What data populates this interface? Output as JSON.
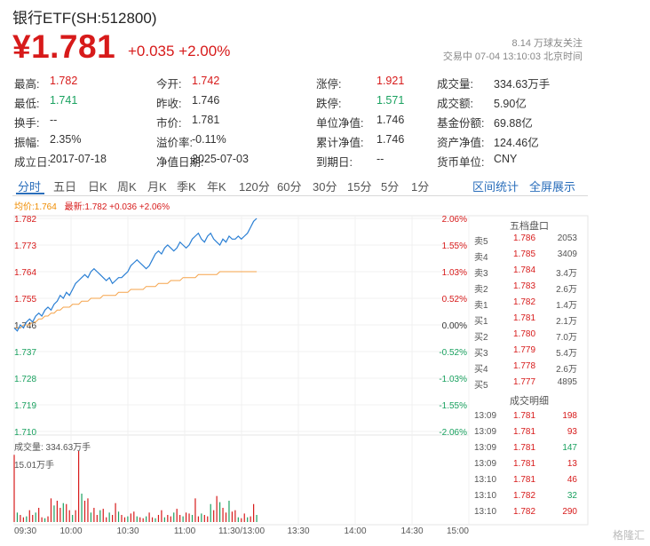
{
  "header": {
    "title": "银行ETF(SH:512800)",
    "price": "¥1.781",
    "change": "+0.035 +2.00%",
    "followers": "8.14 万球友关注",
    "status_time": "交易中 07-04 13:10:03 北京时间"
  },
  "stats": [
    {
      "label": "最高:",
      "value": "1.782",
      "color": "red"
    },
    {
      "label": "今开:",
      "value": "1.742",
      "color": "red"
    },
    {
      "label": "涨停:",
      "value": "1.921",
      "color": "red"
    },
    {
      "label": "成交量:",
      "value": "334.63万手",
      "color": ""
    },
    {
      "label": "最低:",
      "value": "1.741",
      "color": "green"
    },
    {
      "label": "昨收:",
      "value": "1.746",
      "color": ""
    },
    {
      "label": "跌停:",
      "value": "1.571",
      "color": "green"
    },
    {
      "label": "成交额:",
      "value": "5.90亿",
      "color": ""
    },
    {
      "label": "换手:",
      "value": "--",
      "color": ""
    },
    {
      "label": "市价:",
      "value": "1.781",
      "color": ""
    },
    {
      "label": "单位净值:",
      "value": "1.746",
      "color": ""
    },
    {
      "label": "基金份额:",
      "value": "69.88亿",
      "color": ""
    },
    {
      "label": "振幅:",
      "value": "2.35%",
      "color": ""
    },
    {
      "label": "溢价率:",
      "value": "-0.11%",
      "color": ""
    },
    {
      "label": "累计净值:",
      "value": "1.746",
      "color": ""
    },
    {
      "label": "资产净值:",
      "value": "124.46亿",
      "color": ""
    },
    {
      "label": "成立日:",
      "value": "2017-07-18",
      "color": ""
    },
    {
      "label": "净值日期:",
      "value": "2025-07-03",
      "color": ""
    },
    {
      "label": "到期日:",
      "value": "--",
      "color": ""
    },
    {
      "label": "货币单位:",
      "value": "CNY",
      "color": ""
    }
  ],
  "tabs": [
    "分时",
    "五日",
    "日K",
    "周K",
    "月K",
    "季K",
    "年K",
    "120分",
    "60分",
    "30分",
    "15分",
    "5分",
    "1分"
  ],
  "active_tab": "分时",
  "right_links": [
    "区间统计",
    "全屏展示"
  ],
  "legend": {
    "avg": "均价:1.764",
    "latest": "最新:1.782 +0.036 +2.06%"
  },
  "order_book": {
    "title": "五档盘口",
    "sell": [
      {
        "label": "卖5",
        "price": "1.786",
        "volume": "2053"
      },
      {
        "label": "卖4",
        "price": "1.785",
        "volume": "3409"
      },
      {
        "label": "卖3",
        "price": "1.784",
        "volume": "3.4万"
      },
      {
        "label": "卖2",
        "price": "1.783",
        "volume": "2.6万"
      },
      {
        "label": "卖1",
        "price": "1.782",
        "volume": "1.4万"
      }
    ],
    "buy": [
      {
        "label": "买1",
        "price": "1.781",
        "volume": "2.1万"
      },
      {
        "label": "买2",
        "price": "1.780",
        "volume": "7.0万"
      },
      {
        "label": "买3",
        "price": "1.779",
        "volume": "5.4万"
      },
      {
        "label": "买4",
        "price": "1.778",
        "volume": "2.6万"
      },
      {
        "label": "买5",
        "price": "1.777",
        "volume": "4895"
      }
    ]
  },
  "deals": {
    "title": "成交明细",
    "rows": [
      {
        "time": "13:09",
        "price": "1.781",
        "volume": "198"
      },
      {
        "time": "13:09",
        "price": "1.781",
        "volume": "93"
      },
      {
        "time": "13:09",
        "price": "1.781",
        "volume": "147"
      },
      {
        "time": "13:09",
        "price": "1.781",
        "volume": "13"
      },
      {
        "time": "13:10",
        "price": "1.781",
        "volume": "46"
      },
      {
        "time": "13:10",
        "price": "1.782",
        "volume": "32"
      },
      {
        "time": "13:10",
        "price": "1.782",
        "volume": "290"
      }
    ]
  },
  "volume_panel": {
    "label": "成交量: 334.63万手",
    "max_label": "15.01万手"
  },
  "watermark": "格隆汇",
  "colors": {
    "up": "#d71a1a",
    "down": "#19a15f",
    "price_line": "#2a7fd4",
    "avg_line": "#f5a34a",
    "accent": "#2a6ebb"
  },
  "chart_data": {
    "type": "line",
    "x_ticks": [
      "09:30",
      "10:00",
      "10:30",
      "11:00",
      "11:30/13:00",
      "13:30",
      "14:00",
      "14:30",
      "15:00"
    ],
    "y_ticks": [
      "1.782",
      "1.773",
      "1.764",
      "1.755",
      "1.746",
      "1.737",
      "1.728",
      "1.719",
      "1.710"
    ],
    "y_pct_ticks": [
      "2.06%",
      "1.55%",
      "1.03%",
      "0.52%",
      "0.00%",
      "-0.52%",
      "-1.03%",
      "-1.55%",
      "-2.06%"
    ],
    "ylim": [
      1.71,
      1.782
    ],
    "prev_close": 1.746,
    "series": [
      {
        "name": "最新",
        "values": [
          1.745,
          1.744,
          1.746,
          1.745,
          1.747,
          1.748,
          1.747,
          1.749,
          1.75,
          1.749,
          1.751,
          1.752,
          1.751,
          1.753,
          1.754,
          1.756,
          1.755,
          1.757,
          1.756,
          1.758,
          1.76,
          1.761,
          1.762,
          1.763,
          1.762,
          1.764,
          1.765,
          1.764,
          1.763,
          1.762,
          1.761,
          1.762,
          1.76,
          1.761,
          1.762,
          1.762,
          1.763,
          1.764,
          1.766,
          1.767,
          1.768,
          1.767,
          1.766,
          1.765,
          1.766,
          1.768,
          1.77,
          1.771,
          1.77,
          1.772,
          1.773,
          1.772,
          1.771,
          1.772,
          1.774,
          1.773,
          1.772,
          1.773,
          1.775,
          1.776,
          1.777,
          1.775,
          1.774,
          1.776,
          1.777,
          1.775,
          1.774,
          1.773,
          1.775,
          1.774,
          1.776,
          1.775,
          1.775,
          1.776,
          1.775,
          1.776,
          1.777,
          1.779,
          1.781,
          1.782
        ]
      },
      {
        "name": "均价",
        "values": [
          1.745,
          1.745,
          1.745,
          1.746,
          1.746,
          1.746,
          1.747,
          1.747,
          1.748,
          1.748,
          1.749,
          1.749,
          1.75,
          1.75,
          1.751,
          1.751,
          1.752,
          1.752,
          1.752,
          1.753,
          1.753,
          1.753,
          1.754,
          1.754,
          1.754,
          1.755,
          1.755,
          1.755,
          1.755,
          1.756,
          1.756,
          1.756,
          1.756,
          1.756,
          1.757,
          1.757,
          1.757,
          1.757,
          1.758,
          1.758,
          1.758,
          1.758,
          1.758,
          1.759,
          1.759,
          1.759,
          1.759,
          1.76,
          1.76,
          1.76,
          1.76,
          1.761,
          1.761,
          1.761,
          1.761,
          1.762,
          1.762,
          1.762,
          1.762,
          1.762,
          1.763,
          1.763,
          1.763,
          1.763,
          1.763,
          1.763,
          1.763,
          1.764,
          1.764,
          1.764,
          1.764,
          1.764,
          1.764,
          1.764,
          1.764,
          1.764,
          1.764,
          1.764,
          1.764,
          1.764
        ]
      }
    ],
    "volume": [
      14.2,
      2,
      1.5,
      1,
      1.2,
      2.5,
      1.5,
      2,
      3,
      1,
      0.8,
      1.2,
      5,
      3.5,
      4.5,
      3,
      4,
      3.8,
      2.5,
      1.5,
      2.5,
      15.01,
      6,
      4.5,
      5,
      2,
      3,
      1.5,
      2.5,
      2.8,
      1,
      2,
      1.5,
      4,
      2.2,
      1.5,
      1,
      1.2,
      1.8,
      2.2,
      1.2,
      1,
      0.8,
      1.2,
      2,
      1,
      0.8,
      1.5,
      2.5,
      1,
      1.5,
      1.2,
      2,
      2.8,
      1.5,
      1.2,
      2,
      1.8,
      1.5,
      5,
      1.2,
      1.8,
      1.5,
      1.2,
      3.8,
      2.5,
      5.5,
      4.2,
      3,
      2,
      4.5,
      2.2,
      2.5,
      1,
      0.8,
      1.8,
      1,
      1.2,
      3.8,
      1.5
    ]
  }
}
